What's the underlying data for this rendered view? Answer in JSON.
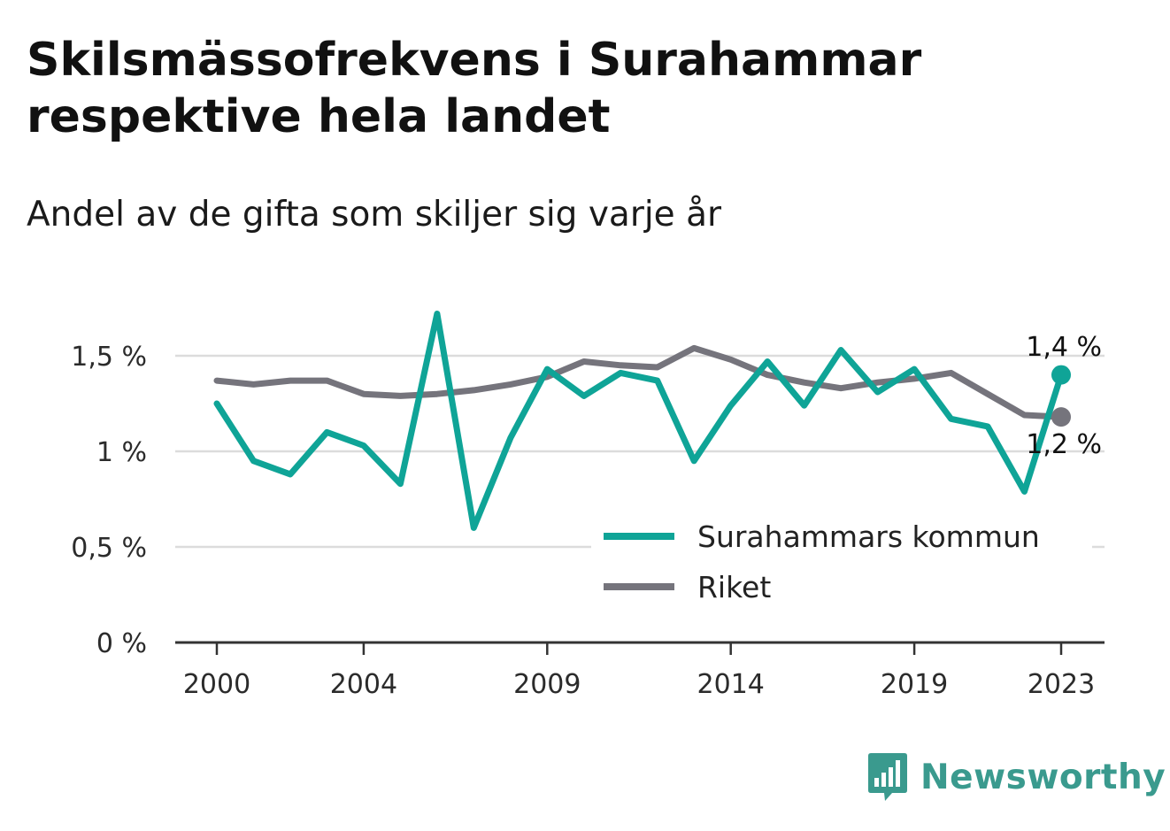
{
  "title": "Skilsmässofrekvens i Surahammar respektive hela landet",
  "subtitle": "Andel av de gifta som skiljer sig varje år",
  "brand": {
    "name": "Newsworthy",
    "icon": "newsworthy-logo-icon"
  },
  "colors": {
    "kommun": "#0fa497",
    "riket": "#75747c",
    "grid": "#dcdcdc",
    "axis": "#333333"
  },
  "chart_data": {
    "type": "line",
    "title": "Skilsmässofrekvens i Surahammar respektive hela landet",
    "subtitle": "Andel av de gifta som skiljer sig varje år",
    "x": [
      2000,
      2001,
      2002,
      2003,
      2004,
      2005,
      2006,
      2007,
      2008,
      2009,
      2010,
      2011,
      2012,
      2013,
      2014,
      2015,
      2016,
      2017,
      2018,
      2019,
      2020,
      2021,
      2022,
      2023
    ],
    "x_ticks": [
      2000,
      2004,
      2009,
      2014,
      2019,
      2023
    ],
    "y_ticks": [
      {
        "value": 0,
        "label": "0 %"
      },
      {
        "value": 0.5,
        "label": "0,5 %"
      },
      {
        "value": 1,
        "label": "1 %"
      },
      {
        "value": 1.5,
        "label": "1,5 %"
      }
    ],
    "ylim": [
      0,
      1.75
    ],
    "grid": true,
    "legend_position": "bottom-right",
    "series": [
      {
        "name": "Surahammars kommun",
        "values": [
          1.25,
          0.95,
          0.88,
          1.1,
          1.03,
          0.83,
          1.72,
          0.6,
          1.07,
          1.43,
          1.29,
          1.41,
          1.37,
          0.95,
          1.24,
          1.47,
          1.24,
          1.53,
          1.31,
          1.43,
          1.17,
          1.13,
          0.79,
          1.4
        ],
        "end_label": "1,4 %"
      },
      {
        "name": "Riket",
        "values": [
          1.37,
          1.35,
          1.37,
          1.37,
          1.3,
          1.29,
          1.3,
          1.32,
          1.35,
          1.39,
          1.47,
          1.45,
          1.44,
          1.54,
          1.48,
          1.4,
          1.36,
          1.33,
          1.36,
          1.38,
          1.41,
          1.3,
          1.19,
          1.18
        ],
        "end_label": "1,2 %"
      }
    ]
  }
}
